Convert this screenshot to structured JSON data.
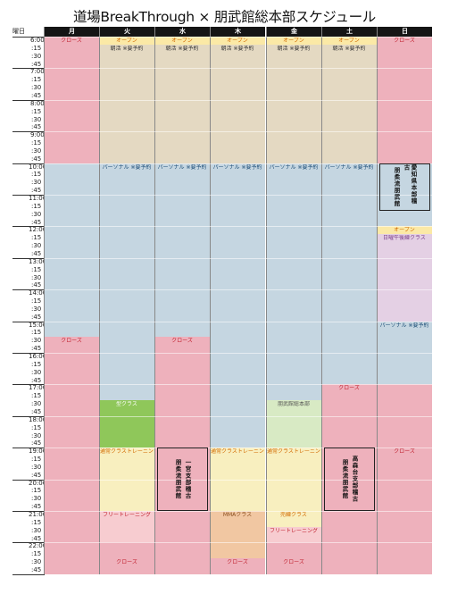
{
  "title": "道場BreakThrough × 朋武館総本部スケジュール",
  "corner_label": "曜日",
  "days": [
    "月",
    "火",
    "水",
    "木",
    "金",
    "土",
    "日"
  ],
  "time_rows": [
    "6:00",
    ":15",
    ":30",
    ":45",
    "7:00",
    ":15",
    ":30",
    ":45",
    "8:00",
    ":15",
    ":30",
    ":45",
    "9:00",
    ":15",
    ":30",
    ":45",
    "10:00",
    ":15",
    ":30",
    ":45",
    "11:00",
    ":15",
    ":30",
    ":45",
    "12:00",
    ":15",
    ":30",
    ":45",
    "13:00",
    ":15",
    ":30",
    ":45",
    "14:00",
    ":15",
    ":30",
    ":45",
    "15:00",
    ":15",
    ":30",
    ":45",
    "16:00",
    ":15",
    ":30",
    ":45",
    "17:00",
    ":15",
    ":30",
    ":45",
    "18:00",
    ":15",
    ":30",
    ":45",
    "19:00",
    ":15",
    ":30",
    ":45",
    "20:00",
    ":15",
    ":30",
    ":45",
    "21:00",
    ":15",
    ":30",
    ":45",
    "22:00",
    ":15",
    ":30",
    ":45"
  ],
  "colors": {
    "closed": "#eeb1bc",
    "morning": "#e4d9c2",
    "personal": "#c5d6e1",
    "open": "#fbe9a6",
    "training": "#f8efbf",
    "free": "#f7ccd0",
    "kata": "#8fc75a",
    "kata_light": "#d8eac4",
    "mma": "#f1c7a2",
    "sunday_class": "#e4d0e4",
    "header": "#151515"
  },
  "blocks": [
    {
      "day": 0,
      "start": 0,
      "end": 68,
      "color": "closed",
      "labels": [
        {
          "row": 0,
          "text": "クローズ",
          "color": "#c0202e"
        },
        {
          "row": 16,
          "text": "パーソナル ※要予約",
          "color": "#1f4f78"
        },
        {
          "row": 38,
          "text": "クローズ",
          "color": "#c0202e"
        }
      ]
    },
    {
      "day": 1,
      "start": 0,
      "end": 68,
      "color": "closed",
      "labels": []
    },
    {
      "day": 2,
      "start": 0,
      "end": 68,
      "color": "closed",
      "labels": []
    },
    {
      "day": 3,
      "start": 0,
      "end": 68,
      "color": "closed",
      "labels": []
    },
    {
      "day": 4,
      "start": 0,
      "end": 68,
      "color": "closed",
      "labels": []
    },
    {
      "day": 5,
      "start": 0,
      "end": 68,
      "color": "closed",
      "labels": []
    },
    {
      "day": 6,
      "start": 0,
      "end": 68,
      "color": "closed",
      "labels": [
        {
          "row": 0,
          "text": "クローズ",
          "color": "#c0202e"
        },
        {
          "row": 52,
          "text": "クローズ",
          "color": "#c0202e"
        }
      ]
    },
    {
      "day": 0,
      "start": 16,
      "end": 38,
      "color": "personal",
      "labels": []
    },
    {
      "day": 1,
      "start": 0,
      "end": 16,
      "color": "morning",
      "labels": []
    },
    {
      "day": 2,
      "start": 0,
      "end": 16,
      "color": "morning",
      "labels": []
    },
    {
      "day": 3,
      "start": 0,
      "end": 16,
      "color": "morning",
      "labels": []
    },
    {
      "day": 4,
      "start": 0,
      "end": 16,
      "color": "morning",
      "labels": []
    },
    {
      "day": 5,
      "start": 0,
      "end": 16,
      "color": "morning",
      "labels": []
    },
    {
      "day": 1,
      "start": 0,
      "end": 1,
      "color": "open",
      "labels": [
        {
          "row": 0,
          "text": "オープン",
          "color": "#d26a00"
        },
        {
          "row": 1,
          "text": "朝活 ※要予約",
          "color": "#333333"
        }
      ]
    },
    {
      "day": 2,
      "start": 0,
      "end": 1,
      "color": "open",
      "labels": [
        {
          "row": 0,
          "text": "オープン",
          "color": "#d26a00"
        },
        {
          "row": 1,
          "text": "朝活 ※要予約",
          "color": "#333333"
        }
      ]
    },
    {
      "day": 3,
      "start": 0,
      "end": 1,
      "color": "open",
      "labels": [
        {
          "row": 0,
          "text": "オープン",
          "color": "#d26a00"
        },
        {
          "row": 1,
          "text": "朝活 ※要予約",
          "color": "#333333"
        }
      ]
    },
    {
      "day": 4,
      "start": 0,
      "end": 1,
      "color": "open",
      "labels": [
        {
          "row": 0,
          "text": "オープン",
          "color": "#d26a00"
        },
        {
          "row": 1,
          "text": "朝活 ※要予約",
          "color": "#333333"
        }
      ]
    },
    {
      "day": 5,
      "start": 0,
      "end": 1,
      "color": "open",
      "labels": [
        {
          "row": 0,
          "text": "オープン",
          "color": "#d26a00"
        },
        {
          "row": 1,
          "text": "朝活 ※要予約",
          "color": "#333333"
        }
      ]
    },
    {
      "day": 1,
      "start": 16,
      "end": 52,
      "color": "personal",
      "labels": [
        {
          "row": 16,
          "text": "パーソナル ※要予約",
          "color": "#1f4f78"
        }
      ]
    },
    {
      "day": 2,
      "start": 16,
      "end": 38,
      "color": "personal",
      "labels": [
        {
          "row": 16,
          "text": "パーソナル ※要予約",
          "color": "#1f4f78"
        },
        {
          "row": 38,
          "text": "クローズ",
          "color": "#c0202e"
        }
      ]
    },
    {
      "day": 3,
      "start": 16,
      "end": 52,
      "color": "personal",
      "labels": [
        {
          "row": 16,
          "text": "パーソナル ※要予約",
          "color": "#1f4f78"
        }
      ]
    },
    {
      "day": 4,
      "start": 16,
      "end": 52,
      "color": "personal",
      "labels": [
        {
          "row": 16,
          "text": "パーソナル ※要予約",
          "color": "#1f4f78"
        }
      ]
    },
    {
      "day": 5,
      "start": 16,
      "end": 44,
      "color": "personal",
      "labels": [
        {
          "row": 16,
          "text": "パーソナル ※要予約",
          "color": "#1f4f78"
        },
        {
          "row": 44,
          "text": "クローズ",
          "color": "#c0202e"
        }
      ]
    },
    {
      "day": 6,
      "start": 16,
      "end": 24,
      "color": "personal",
      "labels": []
    },
    {
      "day": 6,
      "start": 24,
      "end": 25,
      "color": "open",
      "labels": [
        {
          "row": 24,
          "text": "オープン",
          "color": "#d26a00"
        }
      ]
    },
    {
      "day": 6,
      "start": 25,
      "end": 36,
      "color": "sunday_class",
      "labels": [
        {
          "row": 25,
          "text": "日曜午後練クラス",
          "color": "#7a3d8a"
        }
      ]
    },
    {
      "day": 6,
      "start": 36,
      "end": 44,
      "color": "personal",
      "labels": [
        {
          "row": 36,
          "text": "パーソナル ※要予約",
          "color": "#1f4f78"
        }
      ]
    },
    {
      "day": 1,
      "start": 46,
      "end": 52,
      "color": "kata",
      "labels": [
        {
          "row": 46,
          "text": "型クラス",
          "color": "#ffffff"
        }
      ]
    },
    {
      "day": 4,
      "start": 46,
      "end": 52,
      "color": "kata_light",
      "labels": [
        {
          "row": 46,
          "text": "朋武館総本部",
          "color": "#555555"
        }
      ]
    },
    {
      "day": 1,
      "start": 52,
      "end": 60,
      "color": "training",
      "labels": [
        {
          "row": 52,
          "text": "通常クラストレーニング",
          "color": "#d26a00"
        }
      ]
    },
    {
      "day": 3,
      "start": 52,
      "end": 60,
      "color": "training",
      "labels": [
        {
          "row": 52,
          "text": "通常クラストレーニング",
          "color": "#d26a00"
        }
      ]
    },
    {
      "day": 4,
      "start": 52,
      "end": 60,
      "color": "training",
      "labels": [
        {
          "row": 52,
          "text": "通常クラストレーニング",
          "color": "#d26a00"
        }
      ]
    },
    {
      "day": 1,
      "start": 60,
      "end": 64,
      "color": "free",
      "labels": [
        {
          "row": 60,
          "text": "フリートレーニング",
          "color": "#c0202e"
        }
      ]
    },
    {
      "day": 1,
      "start": 66,
      "end": 68,
      "color": "closed",
      "labels": [
        {
          "row": 66,
          "text": "クローズ",
          "color": "#c0202e"
        }
      ]
    },
    {
      "day": 3,
      "start": 60,
      "end": 66,
      "color": "mma",
      "labels": [
        {
          "row": 60,
          "text": "MMAクラス",
          "color": "#8a4d1c"
        },
        {
          "row": 66,
          "text": "クローズ",
          "color": "#c0202e"
        }
      ]
    },
    {
      "day": 4,
      "start": 60,
      "end": 62,
      "color": "training",
      "labels": [
        {
          "row": 60,
          "text": "売練クラス",
          "color": "#d26a00"
        }
      ]
    },
    {
      "day": 4,
      "start": 62,
      "end": 64,
      "color": "free",
      "labels": [
        {
          "row": 62,
          "text": "フリートレーニング",
          "color": "#c0202e"
        },
        {
          "row": 66,
          "text": "クローズ",
          "color": "#c0202e"
        }
      ]
    }
  ],
  "vboxes": [
    {
      "day": 6,
      "start": 16,
      "end": 22,
      "columns": [
        "愛知県本部稽古",
        "朋柔流朋武館"
      ]
    },
    {
      "day": 2,
      "start": 52,
      "end": 60,
      "columns": [
        "一宮支部稽古",
        "朋柔流朋武館"
      ]
    },
    {
      "day": 5,
      "start": 52,
      "end": 60,
      "columns": [
        "高森台支部稽古",
        "朋柔流朋武館"
      ]
    }
  ]
}
